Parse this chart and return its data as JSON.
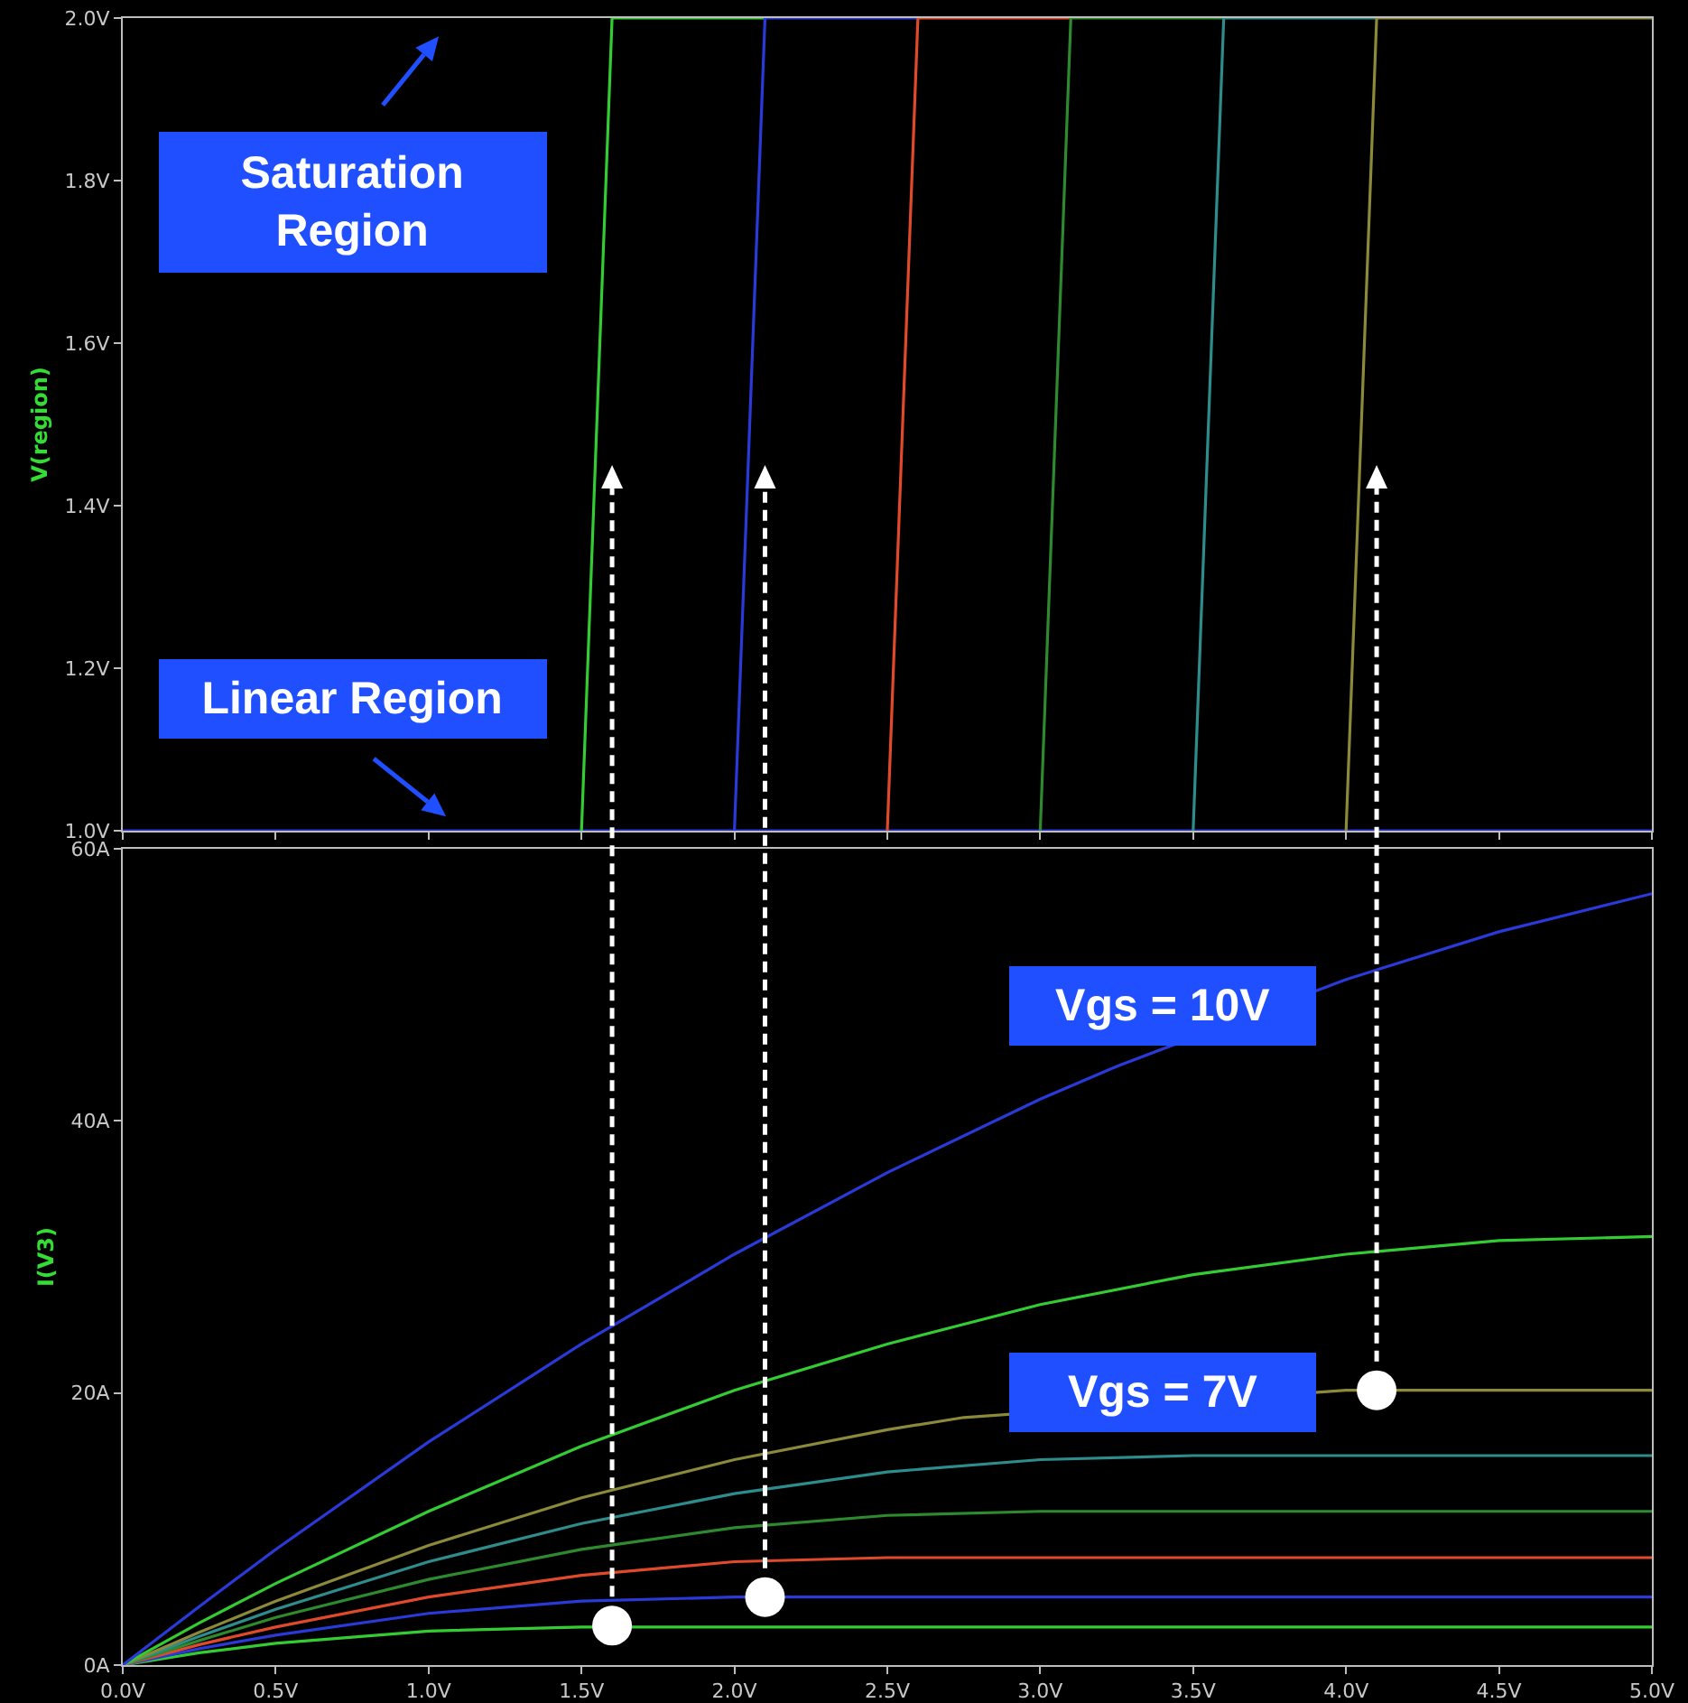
{
  "chart_data": [
    {
      "type": "line",
      "ylabel": "V(region)",
      "xlim": [
        0,
        5
      ],
      "ylim": [
        1,
        2
      ],
      "xticks": [
        {
          "value": 0,
          "label": null
        },
        {
          "value": 0.5,
          "label": null
        },
        {
          "value": 1,
          "label": null
        },
        {
          "value": 1.5,
          "label": null
        },
        {
          "value": 2,
          "label": null
        },
        {
          "value": 2.5,
          "label": null
        },
        {
          "value": 3,
          "label": null
        },
        {
          "value": 3.5,
          "label": null
        },
        {
          "value": 4,
          "label": null
        },
        {
          "value": 4.5,
          "label": null
        },
        {
          "value": 5,
          "label": null
        }
      ],
      "yticks": [
        {
          "value": 1,
          "label": "1.0V"
        },
        {
          "value": 1.2,
          "label": "1.2V"
        },
        {
          "value": 1.4,
          "label": "1.4V"
        },
        {
          "value": 1.6,
          "label": "1.6V"
        },
        {
          "value": 1.8,
          "label": "1.8V"
        },
        {
          "value": 2,
          "label": "2.0V"
        }
      ],
      "tick_labels": "y",
      "grid": false,
      "marker": "none",
      "annotations": [
        "Saturation Region",
        "Linear Region"
      ],
      "series": [
        {
          "color": "#2a3ad8",
          "x": [
            0,
            5
          ],
          "values": [
            1,
            1
          ]
        },
        {
          "color": "#33cc33",
          "x": [
            1.5,
            1.6,
            2.1
          ],
          "values": [
            1,
            2,
            2
          ]
        },
        {
          "color": "#2a3ad8",
          "x": [
            2.0,
            2.1,
            2.6
          ],
          "values": [
            1,
            2,
            2
          ]
        },
        {
          "color": "#e04a2a",
          "x": [
            2.5,
            2.6,
            3.1
          ],
          "values": [
            1,
            2,
            2
          ]
        },
        {
          "color": "#2e8a2e",
          "x": [
            3.0,
            3.1,
            3.6
          ],
          "values": [
            1,
            2,
            2
          ]
        },
        {
          "color": "#2e8c8c",
          "x": [
            3.5,
            3.6,
            4.1
          ],
          "values": [
            1,
            2,
            2
          ]
        },
        {
          "color": "#8c8a3a",
          "x": [
            4.0,
            4.1,
            5
          ],
          "values": [
            1,
            2,
            2
          ]
        }
      ]
    },
    {
      "type": "line",
      "ylabel": "I(V3)",
      "xlim": [
        0,
        5
      ],
      "ylim": [
        0,
        60
      ],
      "xticks": [
        {
          "value": 0,
          "label": "0.0V"
        },
        {
          "value": 0.5,
          "label": "0.5V"
        },
        {
          "value": 1,
          "label": "1.0V"
        },
        {
          "value": 1.5,
          "label": "1.5V"
        },
        {
          "value": 2,
          "label": "2.0V"
        },
        {
          "value": 2.5,
          "label": "2.5V"
        },
        {
          "value": 3,
          "label": "3.0V"
        },
        {
          "value": 3.5,
          "label": "3.5V"
        },
        {
          "value": 4,
          "label": "4.0V"
        },
        {
          "value": 4.5,
          "label": "4.5V"
        },
        {
          "value": 5,
          "label": "5.0V"
        }
      ],
      "yticks": [
        {
          "value": 0,
          "label": "0A"
        },
        {
          "value": 20,
          "label": "20A"
        },
        {
          "value": 40,
          "label": "40A"
        },
        {
          "value": 60,
          "label": "60A"
        }
      ],
      "grid": false,
      "marker": "none",
      "annotations": [
        "Vgs = 10V",
        "Vgs = 7V"
      ],
      "x": [
        0,
        0.25,
        0.5,
        1,
        1.5,
        2,
        2.5,
        3,
        3.5,
        4,
        4.5,
        5
      ],
      "series": [
        {
          "color": "#33cc33",
          "values": [
            0,
            0.9,
            1.6,
            2.5,
            2.8,
            2.8,
            2.8,
            2.8,
            2.8,
            2.8,
            2.8,
            2.8
          ]
        },
        {
          "color": "#2a3ad8",
          "values": [
            0,
            1.2,
            2.2,
            3.8,
            4.7,
            5.0,
            5.0,
            5.0,
            5.0,
            5.0,
            5.0,
            5.0
          ]
        },
        {
          "color": "#e04a2a",
          "values": [
            0,
            1.5,
            2.8,
            5.0,
            6.6,
            7.6,
            7.9,
            7.9,
            7.9,
            7.9,
            7.9,
            7.9
          ]
        },
        {
          "color": "#2e8a2e",
          "values": [
            0,
            1.8,
            3.5,
            6.3,
            8.5,
            10.1,
            11.0,
            11.3,
            11.3,
            11.3,
            11.3,
            11.3
          ]
        },
        {
          "color": "#2e8c8c",
          "values": [
            0,
            2.1,
            4.1,
            7.6,
            10.4,
            12.6,
            14.2,
            15.1,
            15.4,
            15.4,
            15.4,
            15.4
          ]
        },
        {
          "color": "#8c8a3a",
          "x": [
            0,
            0.25,
            0.5,
            1,
            1.5,
            2,
            2.5,
            2.75,
            4,
            4.5,
            5
          ],
          "values": [
            0,
            2.4,
            4.7,
            8.8,
            12.3,
            15.1,
            17.3,
            18.2,
            20.2,
            20.2,
            20.2
          ]
        },
        {
          "color": "#33cc33",
          "values": [
            0,
            3.1,
            6.0,
            11.3,
            16.1,
            20.2,
            23.6,
            26.5,
            28.7,
            30.2,
            31.2,
            31.5
          ]
        },
        {
          "color": "#2a3ad8",
          "x": [
            0,
            0.25,
            0.5,
            1,
            1.5,
            2,
            2.5,
            3,
            3.25,
            4,
            4.5,
            5
          ],
          "values": [
            0,
            4.3,
            8.5,
            16.4,
            23.6,
            30.2,
            36.2,
            41.6,
            44.0,
            50.4,
            53.9,
            56.7
          ]
        },
        {
          "type": "scatter",
          "marker": "circle",
          "color": "#ffffff",
          "x": [
            1.6,
            2.1,
            4.1
          ],
          "values": [
            2.9,
            5.0,
            20.2
          ]
        }
      ]
    }
  ]
}
